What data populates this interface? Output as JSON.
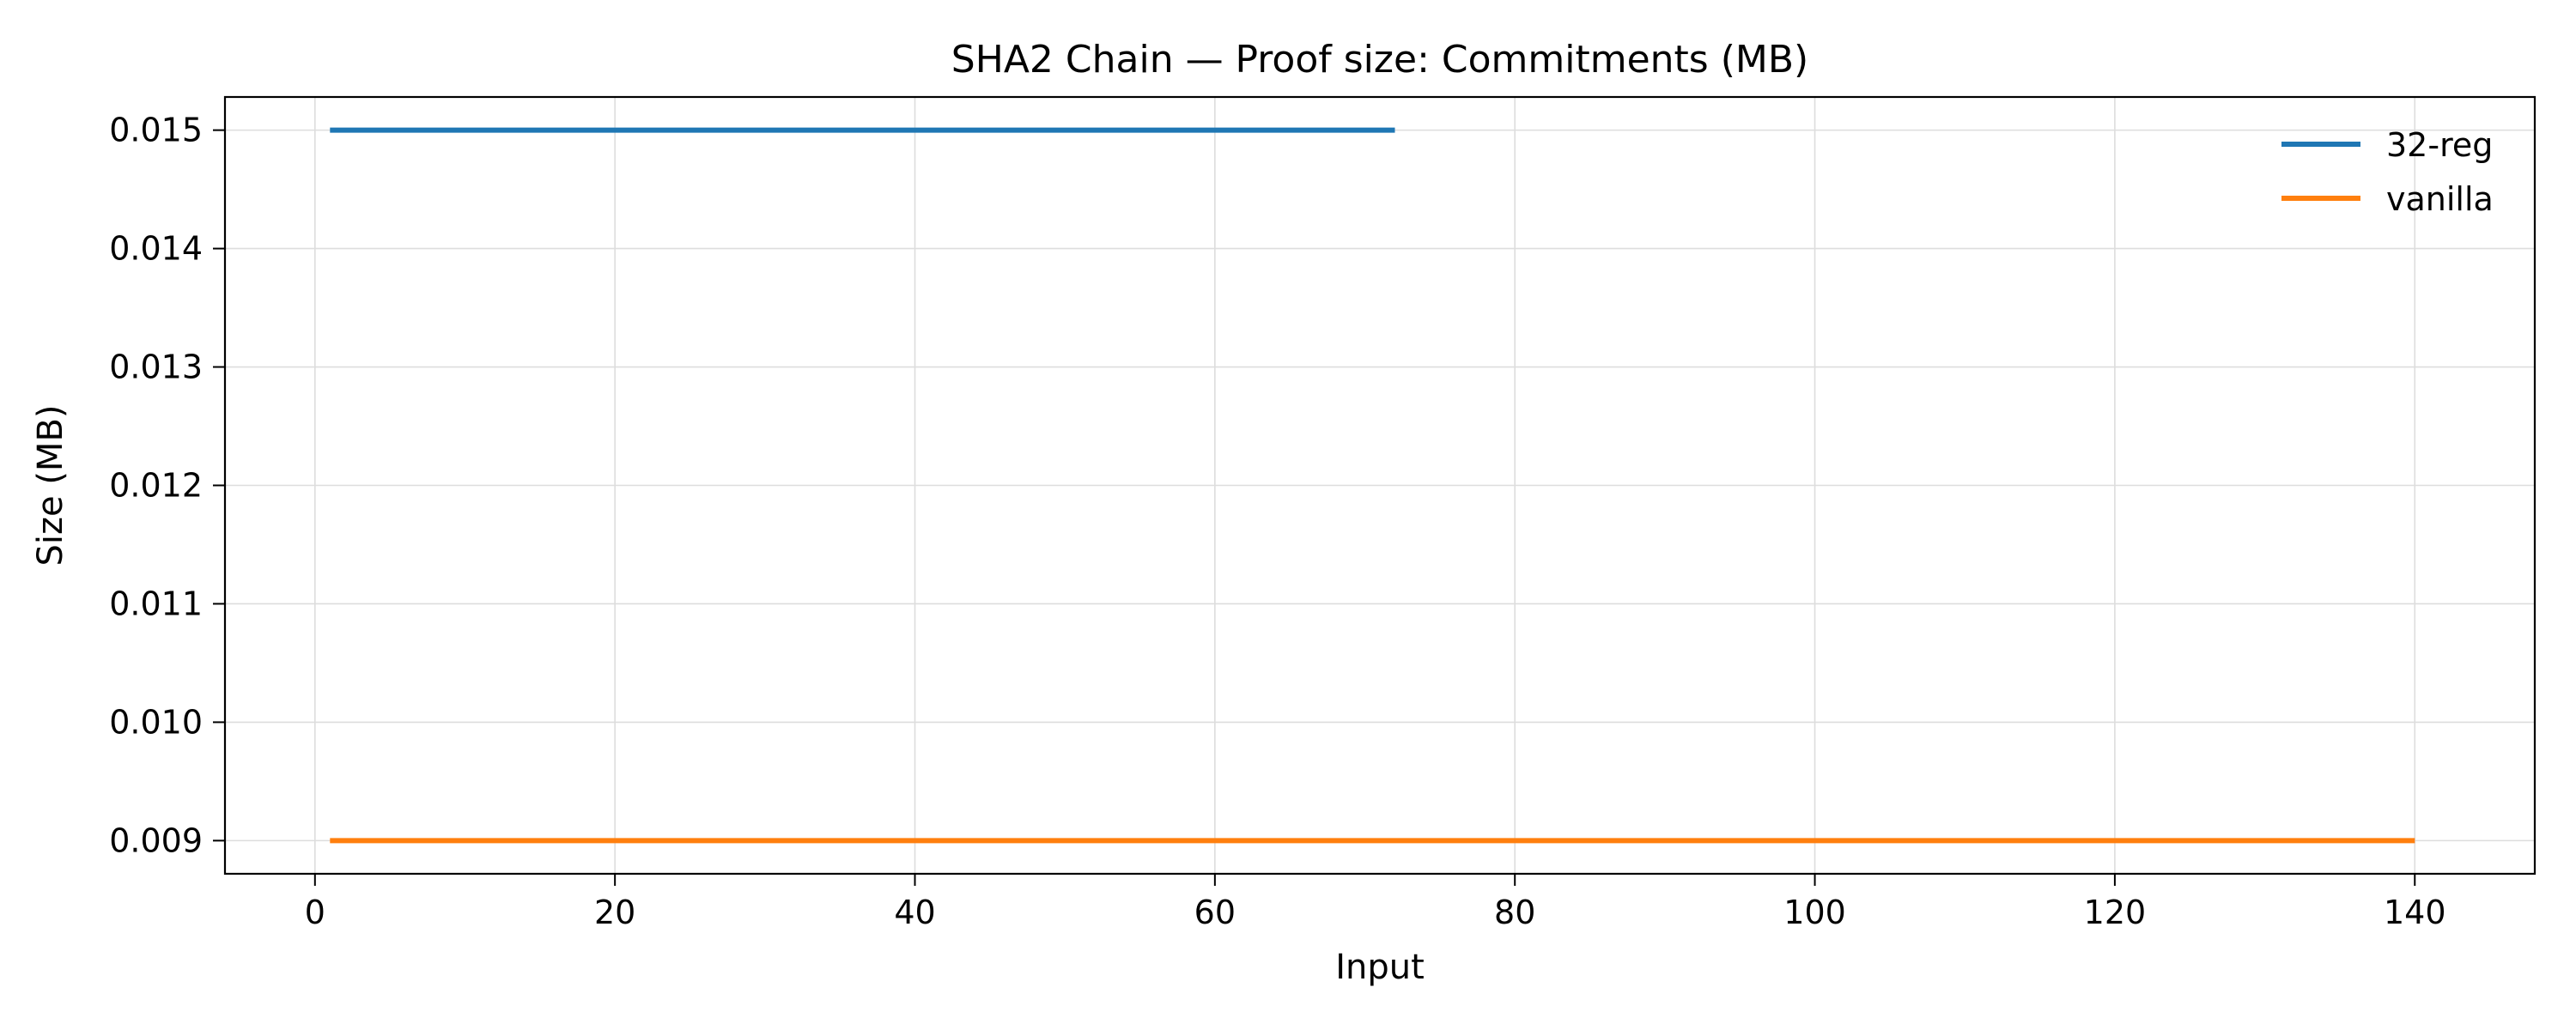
{
  "chart_data": {
    "type": "line",
    "title": "SHA2 Chain — Proof size: Commitments (MB)",
    "xlabel": "Input",
    "ylabel": "Size (MB)",
    "xlim": [
      -6,
      148
    ],
    "ylim": [
      0.00872,
      0.01528
    ],
    "x_ticks": [
      0,
      20,
      40,
      60,
      80,
      100,
      120,
      140
    ],
    "x_tick_labels": [
      "0",
      "20",
      "40",
      "60",
      "80",
      "100",
      "120",
      "140"
    ],
    "y_ticks": [
      0.009,
      0.01,
      0.011,
      0.012,
      0.013,
      0.014,
      0.015
    ],
    "y_tick_labels": [
      "0.009",
      "0.010",
      "0.011",
      "0.012",
      "0.013",
      "0.014",
      "0.015"
    ],
    "grid": true,
    "legend_position": "top-right",
    "series": [
      {
        "name": "32-reg",
        "color": "#1f77b4",
        "x": [
          1,
          72
        ],
        "y": [
          0.015,
          0.015
        ]
      },
      {
        "name": "vanilla",
        "color": "#ff7f0e",
        "x": [
          1,
          140
        ],
        "y": [
          0.009,
          0.009
        ]
      }
    ]
  }
}
